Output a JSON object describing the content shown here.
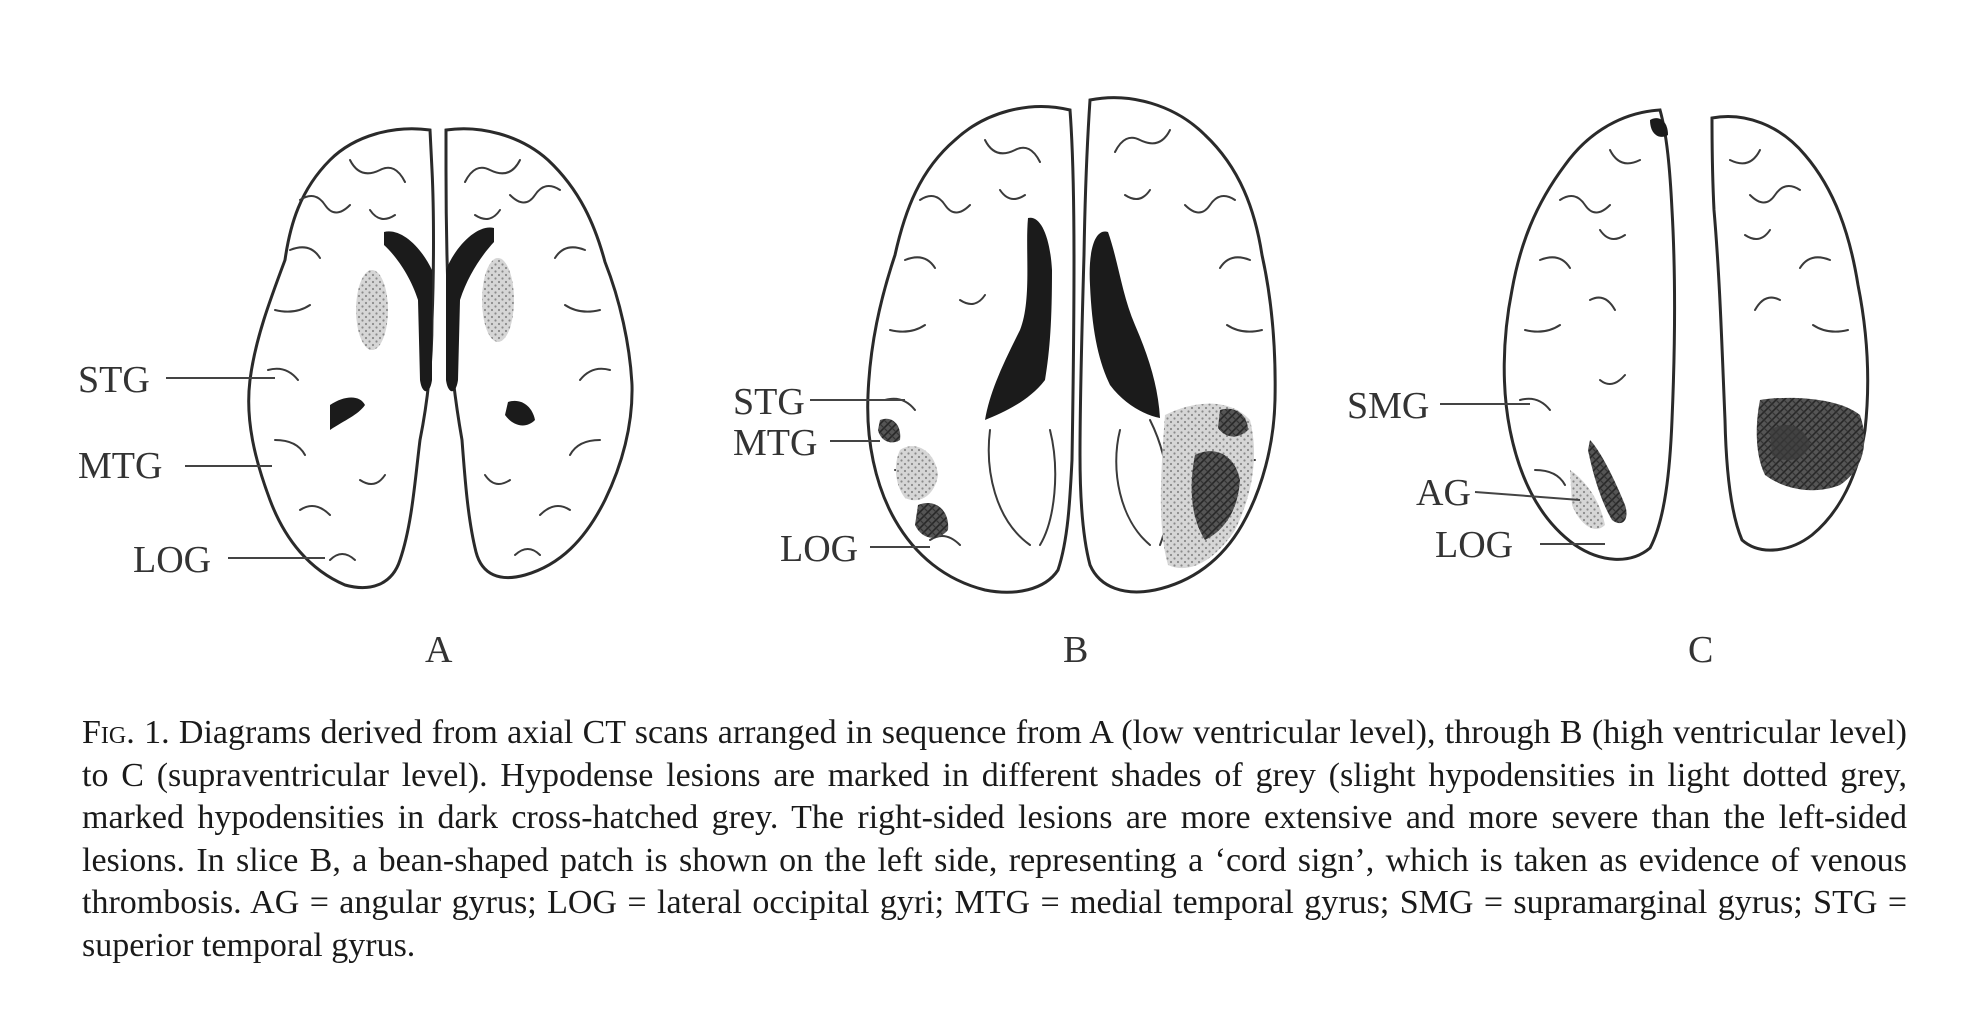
{
  "figure": {
    "panels": [
      {
        "letter": "A",
        "labels": [
          "STG",
          "MTG",
          "LOG"
        ]
      },
      {
        "letter": "B",
        "labels": [
          "STG",
          "MTG",
          "LOG"
        ]
      },
      {
        "letter": "C",
        "labels": [
          "SMG",
          "AG",
          "LOG"
        ]
      }
    ]
  },
  "caption": {
    "fig_label": "Fig. 1.",
    "text": "Diagrams derived from axial CT scans arranged in sequence from A (low ventricular level), through B (high ventricular level) to C (supraventricular level). Hypodense lesions are marked in different shades of grey (slight hypodensities in light dotted grey, marked hypodensities in dark cross-hatched grey. The right-sided lesions are more extensive and more severe than the left-sided lesions. In slice B, a bean-shaped patch is shown on the left side, representing a ‘cord sign’, which is taken as evidence of venous thrombosis. AG = angular gyrus; LOG = lateral occipital gyri; MTG = medial temporal gyrus; SMG = supramarginal gyrus; STG = superior temporal gyrus."
  }
}
